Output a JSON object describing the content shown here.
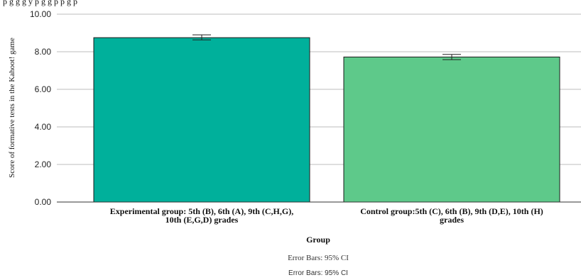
{
  "top_text_clipped": "p                                  g        g        g                                        y     p     g    g p    p                         g p",
  "chart_data": {
    "type": "bar",
    "title": "",
    "xlabel": "Group",
    "ylabel": "Score of formative tests in the Kahoot! game",
    "ylim": [
      0,
      10
    ],
    "yticks": [
      "0.00",
      "2.00",
      "4.00",
      "6.00",
      "8.00",
      "10.00"
    ],
    "grid": true,
    "categories": [
      [
        "Experimental group: 5th (B), 6th (A), 9th (C,H,G),",
        "10th (E,G,D) grades"
      ],
      [
        "Control group:5th (C), 6th (B), 9th (D,E), 10th (H)",
        "grades"
      ]
    ],
    "values": [
      8.75,
      7.72
    ],
    "ci_low": [
      8.63,
      7.58
    ],
    "ci_high": [
      8.9,
      7.86
    ],
    "colors": [
      "#00b09b",
      "#5ec98a"
    ],
    "error_bar_note": "Error Bars: 95% CI",
    "error_bar_note_2": "Error Bars: 95% CI"
  }
}
